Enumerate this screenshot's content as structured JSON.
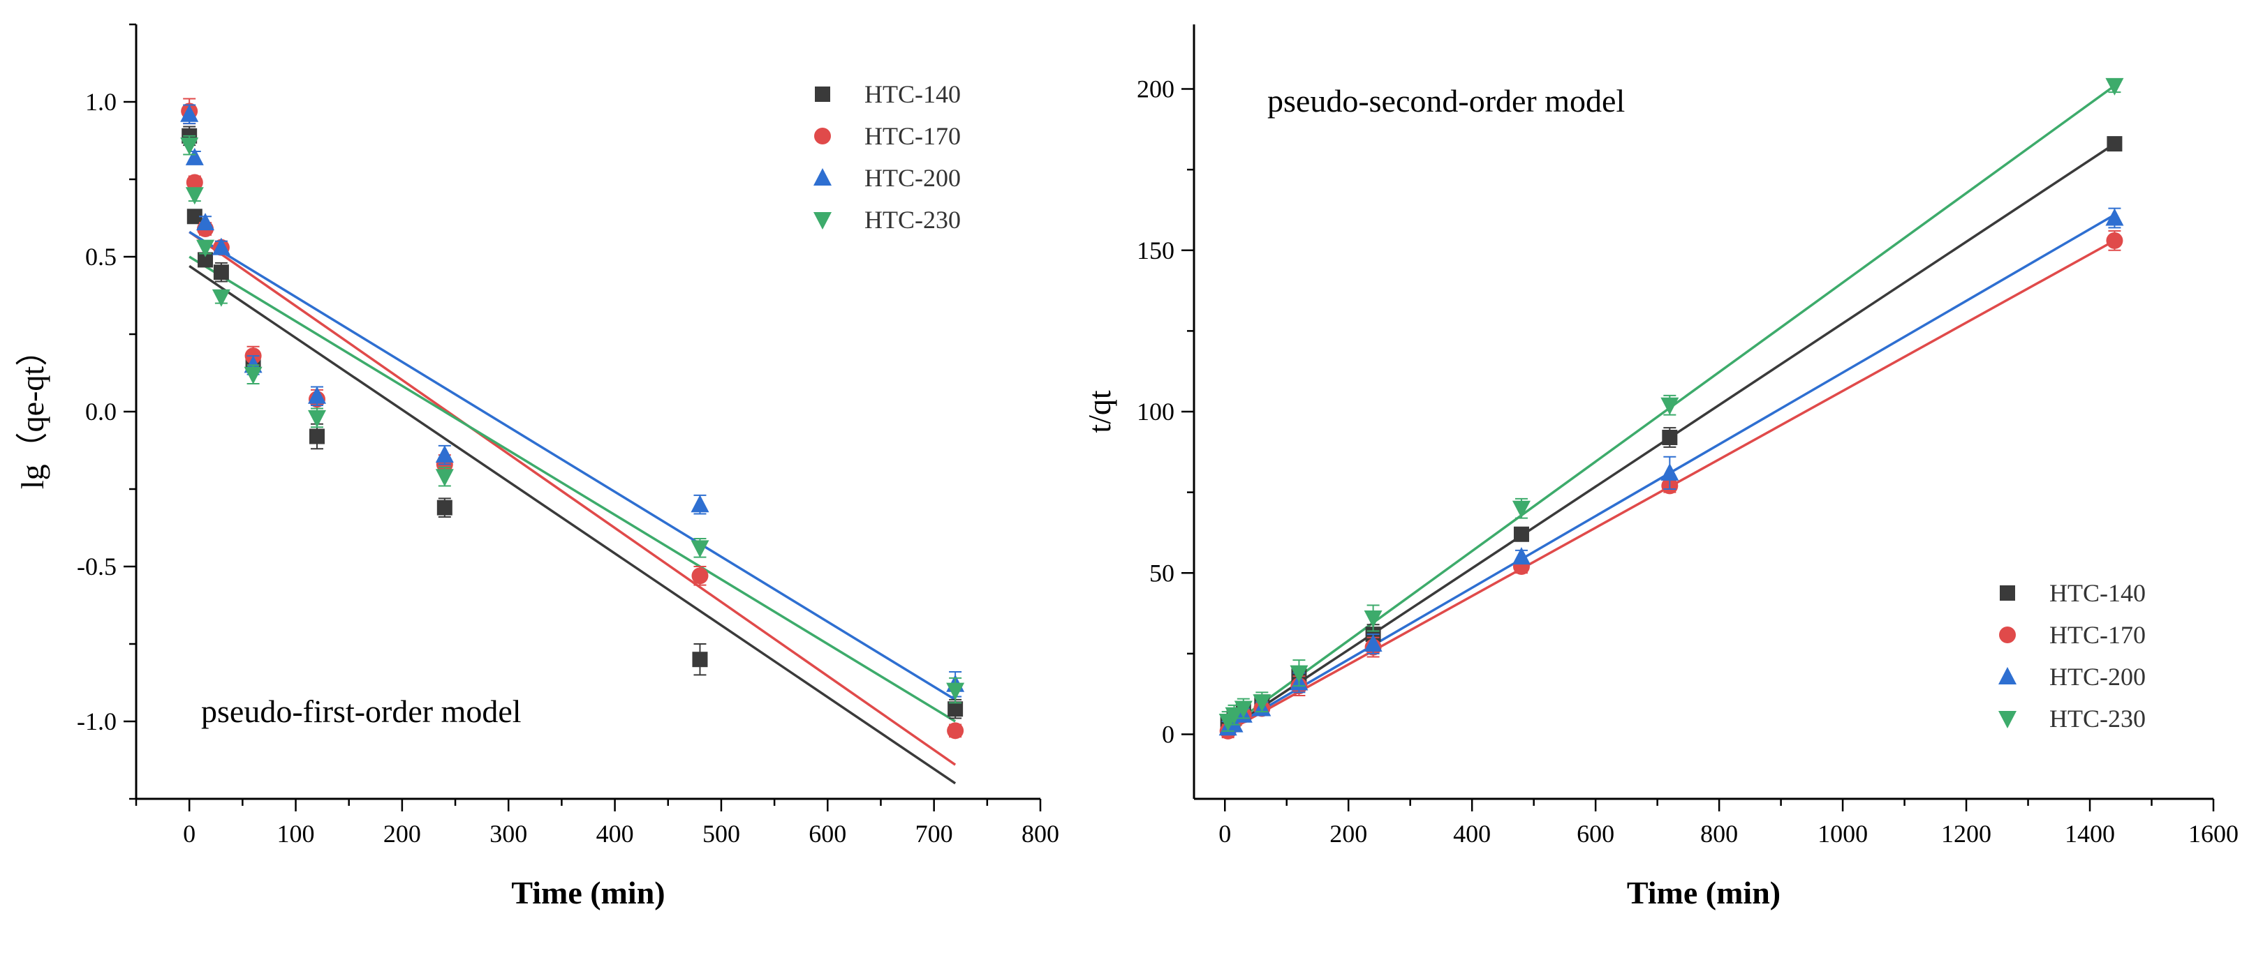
{
  "chart_data": [
    {
      "type": "scatter",
      "annotation": "pseudo-first-order model",
      "xlabel": "Time (min)",
      "ylabel": "lg（qe-qt）",
      "xlim": [
        -50,
        800
      ],
      "ylim": [
        -1.25,
        1.25
      ],
      "xticks": [
        0,
        100,
        200,
        300,
        400,
        500,
        600,
        700,
        800
      ],
      "yticks": [
        -1.0,
        -0.5,
        0.0,
        0.5,
        1.0
      ],
      "xtick_labels": [
        "0",
        "100",
        "200",
        "300",
        "400",
        "500",
        "600",
        "700",
        "800"
      ],
      "ytick_labels": [
        "-1.0",
        "-0.5",
        "0.0",
        "0.5",
        "1.0"
      ],
      "legend_position": "top-right",
      "series": [
        {
          "name": "HTC-140",
          "color": "#3a3a3a",
          "marker": "square",
          "x": [
            0,
            5,
            15,
            30,
            60,
            120,
            240,
            480,
            720
          ],
          "y": [
            0.89,
            0.63,
            0.49,
            0.45,
            0.16,
            -0.08,
            -0.31,
            -0.8,
            -0.96
          ],
          "err": [
            0.03,
            0.02,
            0.02,
            0.03,
            0.03,
            0.04,
            0.03,
            0.05,
            0.03
          ],
          "fit": [
            0.47,
            -1.2
          ]
        },
        {
          "name": "HTC-170",
          "color": "#e04a4a",
          "marker": "circle",
          "x": [
            0,
            5,
            15,
            30,
            60,
            120,
            240,
            480,
            720
          ],
          "y": [
            0.97,
            0.74,
            0.59,
            0.53,
            0.18,
            0.04,
            -0.17,
            -0.53,
            -1.03
          ],
          "err": [
            0.04,
            0.02,
            0.02,
            0.02,
            0.03,
            0.03,
            0.03,
            0.03,
            0.02
          ],
          "fit": [
            0.58,
            -1.14
          ]
        },
        {
          "name": "HTC-200",
          "color": "#2e6fd1",
          "marker": "triangle-up",
          "x": [
            0,
            5,
            15,
            30,
            60,
            120,
            240,
            480,
            720
          ],
          "y": [
            0.96,
            0.82,
            0.61,
            0.53,
            0.15,
            0.05,
            -0.14,
            -0.3,
            -0.88
          ],
          "err": [
            0.03,
            0.02,
            0.02,
            0.02,
            0.03,
            0.03,
            0.03,
            0.03,
            0.04
          ],
          "fit": [
            0.58,
            -0.93
          ]
        },
        {
          "name": "HTC-230",
          "color": "#3dab6b",
          "marker": "triangle-down",
          "x": [
            0,
            5,
            15,
            30,
            60,
            120,
            240,
            480,
            720
          ],
          "y": [
            0.86,
            0.7,
            0.53,
            0.37,
            0.12,
            -0.02,
            -0.21,
            -0.44,
            -0.9
          ],
          "err": [
            0.03,
            0.02,
            0.02,
            0.02,
            0.03,
            0.03,
            0.03,
            0.03,
            0.04
          ],
          "fit": [
            0.5,
            -1.0
          ]
        }
      ]
    },
    {
      "type": "scatter",
      "annotation": "pseudo-second-order model",
      "xlabel": "Time (min)",
      "ylabel": "t/qt",
      "xlim": [
        -50,
        1600
      ],
      "ylim": [
        -20,
        220
      ],
      "xticks": [
        0,
        200,
        400,
        600,
        800,
        1000,
        1200,
        1400,
        1600
      ],
      "yticks": [
        0,
        50,
        100,
        150,
        200
      ],
      "xtick_labels": [
        "0",
        "200",
        "400",
        "600",
        "800",
        "1000",
        "1200",
        "1400",
        "1600"
      ],
      "ytick_labels": [
        "0",
        "50",
        "100",
        "150",
        "200"
      ],
      "legend_position": "bottom-right",
      "series": [
        {
          "name": "HTC-140",
          "color": "#3a3a3a",
          "marker": "square",
          "x": [
            5,
            15,
            30,
            60,
            120,
            240,
            480,
            720,
            1440
          ],
          "y": [
            3.5,
            5,
            7,
            10,
            18,
            31,
            62,
            92,
            183
          ],
          "err": [
            2,
            2,
            2,
            2,
            3,
            3,
            2,
            3,
            2
          ],
          "fit": [
            1.5,
            183
          ]
        },
        {
          "name": "HTC-170",
          "color": "#e04a4a",
          "marker": "circle",
          "x": [
            5,
            15,
            30,
            60,
            120,
            240,
            480,
            720,
            1440
          ],
          "y": [
            1,
            4,
            6,
            8,
            15,
            27,
            52,
            77,
            153
          ],
          "err": [
            2,
            2,
            2,
            2,
            3,
            3,
            2,
            2,
            3
          ],
          "fit": [
            1,
            153
          ]
        },
        {
          "name": "HTC-200",
          "color": "#2e6fd1",
          "marker": "triangle-up",
          "x": [
            5,
            15,
            30,
            60,
            120,
            240,
            480,
            720,
            1440
          ],
          "y": [
            2,
            3,
            6,
            8,
            16,
            28,
            55,
            81,
            160
          ],
          "err": [
            2,
            2,
            2,
            2,
            3,
            3,
            2,
            5,
            3
          ],
          "fit": [
            1.5,
            161
          ]
        },
        {
          "name": "HTC-230",
          "color": "#3dab6b",
          "marker": "triangle-down",
          "x": [
            5,
            15,
            30,
            60,
            120,
            240,
            480,
            720,
            1440
          ],
          "y": [
            4,
            6,
            8,
            10,
            19,
            36,
            70,
            102,
            201
          ],
          "err": [
            3,
            3,
            3,
            3,
            4,
            4,
            3,
            3,
            2
          ],
          "fit": [
            2,
            201
          ]
        }
      ]
    }
  ]
}
